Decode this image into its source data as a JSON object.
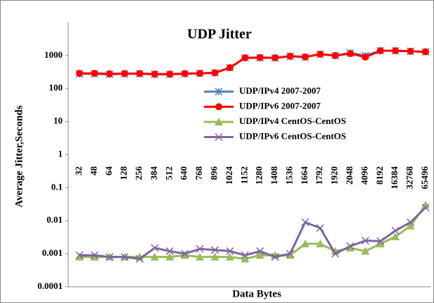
{
  "chart_data": {
    "type": "line",
    "title": "UDP Jitter",
    "x_label": "Data Bytes",
    "y_label": "Average Jitter,Seconds",
    "categories": [
      "32",
      "48",
      "64",
      "128",
      "256",
      "384",
      "512",
      "640",
      "768",
      "896",
      "1024",
      "1152",
      "1280",
      "1408",
      "1536",
      "1664",
      "1792",
      "1920",
      "2048",
      "4096",
      "8192",
      "16384",
      "32768",
      "65496"
    ],
    "series": [
      {
        "name": "UDP/IPv4 2007-2007",
        "color": "#4f81bd",
        "marker": "star",
        "values": [
          280,
          280,
          270,
          280,
          280,
          270,
          270,
          280,
          290,
          300,
          430,
          850,
          860,
          850,
          950,
          900,
          1100,
          1000,
          1200,
          1000,
          1400,
          1400,
          1350,
          1300
        ]
      },
      {
        "name": "UDP/IPv6 2007-2007",
        "color": "#ff0000",
        "marker": "circle",
        "values": [
          290,
          290,
          280,
          285,
          285,
          275,
          275,
          285,
          290,
          300,
          430,
          860,
          870,
          860,
          960,
          910,
          1100,
          1000,
          1150,
          900,
          1400,
          1400,
          1350,
          1300
        ]
      },
      {
        "name": "UDP/IPv4 CentOS-CentOS",
        "color": "#9bbb59",
        "marker": "triangle",
        "values": [
          0.0008,
          0.0008,
          0.0008,
          0.0008,
          0.0008,
          0.0008,
          0.0008,
          0.0009,
          0.0008,
          0.0008,
          0.0008,
          0.0007,
          0.0009,
          0.0009,
          0.0009,
          0.002,
          0.002,
          0.0012,
          0.0015,
          0.0012,
          0.002,
          0.0033,
          0.007,
          0.03
        ]
      },
      {
        "name": "UDP/IPv6 CentOS-CentOS",
        "color": "#8064a2",
        "marker": "x",
        "values": [
          0.0009,
          0.0009,
          0.0008,
          0.0008,
          0.0007,
          0.0015,
          0.0012,
          0.001,
          0.0014,
          0.0013,
          0.0012,
          0.0009,
          0.0012,
          0.0008,
          0.001,
          0.009,
          0.006,
          0.001,
          0.0017,
          0.0025,
          0.0024,
          0.005,
          0.009,
          0.025
        ]
      }
    ],
    "log_scale": true,
    "grid": false,
    "ylim": [
      0.0001,
      10000
    ],
    "yticks": [
      0.0001,
      0.001,
      0.01,
      0.1,
      1,
      10,
      100,
      1000
    ]
  }
}
